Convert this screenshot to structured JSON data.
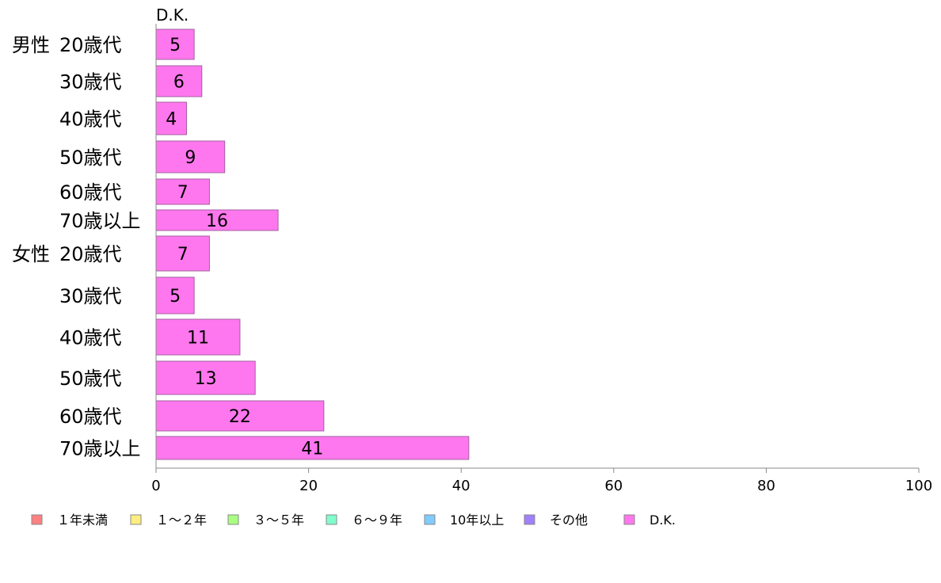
{
  "chart_data": {
    "type": "bar",
    "orientation": "horizontal",
    "series_title": "D.K.",
    "groups": [
      {
        "label": "男性",
        "categories": [
          "20歳代",
          "30歳代",
          "40歳代",
          "50歳代",
          "60歳代",
          "70歳以上"
        ]
      },
      {
        "label": "女性",
        "categories": [
          "20歳代",
          "30歳代",
          "40歳代",
          "50歳代",
          "60歳代",
          "70歳以上"
        ]
      }
    ],
    "series": [
      {
        "name": "D.K.",
        "color": "#ff77ee",
        "values": [
          5,
          6,
          4,
          9,
          7,
          16,
          7,
          5,
          11,
          13,
          22,
          41
        ]
      }
    ],
    "xlim": [
      0,
      100
    ],
    "x_ticks": [
      "0",
      "20",
      "40",
      "60",
      "80",
      "100"
    ],
    "legend": {
      "placement": "bottom",
      "entries": [
        {
          "label": "１年未満",
          "color": "#ff8080"
        },
        {
          "label": "１〜２年",
          "color": "#ffee80"
        },
        {
          "label": "３〜５年",
          "color": "#a8ff80"
        },
        {
          "label": "６〜９年",
          "color": "#80ffcc"
        },
        {
          "label": "10年以上",
          "color": "#80ccff"
        },
        {
          "label": "その他",
          "color": "#a080ff"
        },
        {
          "label": "D.K.",
          "color": "#ff77ee"
        }
      ]
    },
    "grid": false
  }
}
